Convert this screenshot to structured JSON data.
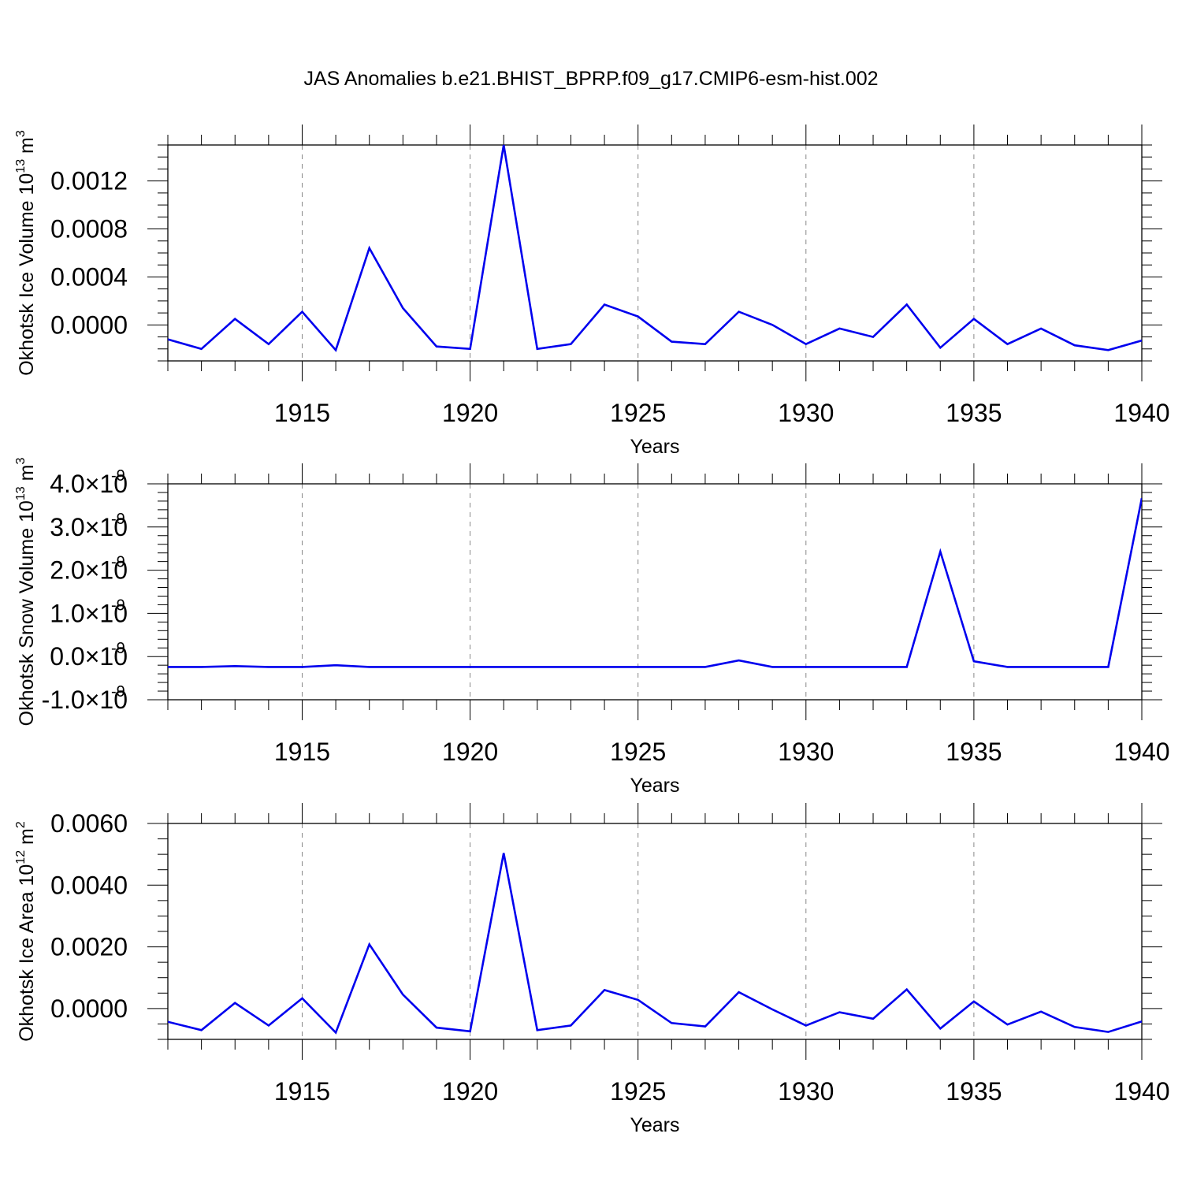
{
  "chart_data": {
    "type": "line",
    "title": "JAS Anomalies b.e21.BHIST_BPRP.f09_g17.CMIP6-esm-hist.002",
    "line_color": "#0000ee",
    "grid_color": "#888888",
    "x": [
      1911,
      1912,
      1913,
      1914,
      1915,
      1916,
      1917,
      1918,
      1919,
      1920,
      1921,
      1922,
      1923,
      1924,
      1925,
      1926,
      1927,
      1928,
      1929,
      1930,
      1931,
      1932,
      1933,
      1934,
      1935,
      1936,
      1937,
      1938,
      1939,
      1940
    ],
    "xlim": [
      1911,
      1940
    ],
    "xticks": [
      1915,
      1920,
      1925,
      1930,
      1935,
      1940
    ],
    "xtick_labels": [
      "1915",
      "1920",
      "1925",
      "1930",
      "1935",
      "1940"
    ],
    "xlabel": "Years",
    "panels": [
      {
        "ylabel_main": "Okhotsk Ice Volume 10",
        "ylabel_exp": "13",
        "ylabel_unit": " m",
        "ylabel_unit_exp": "3",
        "ylim": [
          -0.0003,
          0.0015
        ],
        "ytick_values": [
          0.0,
          0.0004,
          0.0008,
          0.0012
        ],
        "ytick_labels": [
          "0.0000",
          "0.0004",
          "0.0008",
          "0.0012"
        ],
        "ytick_exps": [
          "",
          "",
          "",
          ""
        ],
        "minor_step": 0.0001,
        "values": [
          -0.00012,
          -0.0002,
          5e-05,
          -0.00016,
          0.00011,
          -0.00021,
          0.00064,
          0.00014,
          -0.00018,
          -0.0002,
          0.0015,
          -0.0002,
          -0.00016,
          0.00017,
          7e-05,
          -0.00014,
          -0.00016,
          0.00011,
          0.0,
          -0.00016,
          -3e-05,
          -0.0001,
          0.00017,
          -0.00019,
          5e-05,
          -0.00016,
          -3e-05,
          -0.00017,
          -0.00021,
          -0.00013
        ]
      },
      {
        "ylabel_main": "Okhotsk Snow Volume 10",
        "ylabel_exp": "13",
        "ylabel_unit": " m",
        "ylabel_unit_exp": "3",
        "ylim": [
          -1e-09,
          4e-09
        ],
        "ytick_values": [
          -1e-09,
          0.0,
          1e-09,
          2e-09,
          3e-09,
          4e-09
        ],
        "ytick_labels": [
          "-1.0×10",
          "0.0×10",
          "1.0×10",
          "2.0×10",
          "3.0×10",
          "4.0×10"
        ],
        "ytick_exps": [
          "-9",
          "-9",
          "-9",
          "-9",
          "-9",
          "-9"
        ],
        "minor_step": 2e-10,
        "values": [
          -2.4e-10,
          -2.4e-10,
          -2.2e-10,
          -2.4e-10,
          -2.4e-10,
          -2e-10,
          -2.4e-10,
          -2.4e-10,
          -2.4e-10,
          -2.4e-10,
          -2.4e-10,
          -2.4e-10,
          -2.4e-10,
          -2.4e-10,
          -2.4e-10,
          -2.4e-10,
          -2.4e-10,
          -9e-11,
          -2.4e-10,
          -2.4e-10,
          -2.4e-10,
          -2.4e-10,
          -2.4e-10,
          2.43e-09,
          -1.1e-10,
          -2.4e-10,
          -2.4e-10,
          -2.4e-10,
          -2.4e-10,
          3.67e-09
        ]
      },
      {
        "ylabel_main": "Okhotsk Ice Area 10",
        "ylabel_exp": "12",
        "ylabel_unit": " m",
        "ylabel_unit_exp": "2",
        "ylim": [
          -0.001,
          0.006
        ],
        "ytick_values": [
          0.0,
          0.002,
          0.004,
          0.006
        ],
        "ytick_labels": [
          "0.0000",
          "0.0020",
          "0.0040",
          "0.0060"
        ],
        "ytick_exps": [
          "",
          "",
          "",
          ""
        ],
        "minor_step": 0.0005,
        "values": [
          -0.00043,
          -0.0007,
          0.00018,
          -0.00055,
          0.00033,
          -0.00078,
          0.00208,
          0.00045,
          -0.00062,
          -0.00074,
          0.00504,
          -0.0007,
          -0.00055,
          0.0006,
          0.00028,
          -0.00047,
          -0.00058,
          0.00053,
          -3e-05,
          -0.00055,
          -0.00012,
          -0.00033,
          0.00062,
          -0.00065,
          0.00023,
          -0.00052,
          -0.0001,
          -0.0006,
          -0.00076,
          -0.00042
        ]
      }
    ]
  }
}
